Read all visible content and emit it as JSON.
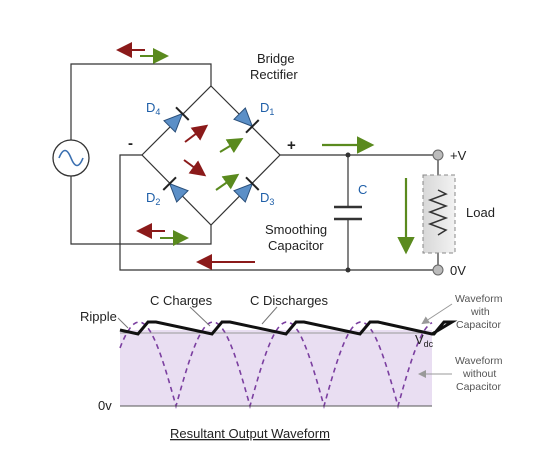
{
  "circuit": {
    "bridge_label_1": "Bridge",
    "bridge_label_2": "Rectifier",
    "d4": "D",
    "d4_sub": "4",
    "d1": "D",
    "d1_sub": "1",
    "d2": "D",
    "d2_sub": "2",
    "d3": "D",
    "d3_sub": "3",
    "minus": "-",
    "plus": "+",
    "cap_label": "C",
    "smoothing_1": "Smoothing",
    "smoothing_2": "Capacitor",
    "plus_v": "+V",
    "zero_v": "0V",
    "load": "Load"
  },
  "waveform": {
    "ripple": "Ripple",
    "c_charges": "C Charges",
    "c_discharges": "C Discharges",
    "vdc": "V",
    "vdc_sub": "dc",
    "zero": "0v",
    "with_cap_1": "Waveform",
    "with_cap_2": "with",
    "with_cap_3": "Capacitor",
    "without_cap_1": "Waveform",
    "without_cap_2": "without",
    "without_cap_3": "Capacitor",
    "title": "Resultant Output Waveform"
  },
  "colors": {
    "red_arrow": "#8b1a1a",
    "green_arrow": "#5a8a1e",
    "diode_fill": "#5b8fc7",
    "wave_purple": "#7b3fa0",
    "wave_bg": "#e9def2"
  }
}
